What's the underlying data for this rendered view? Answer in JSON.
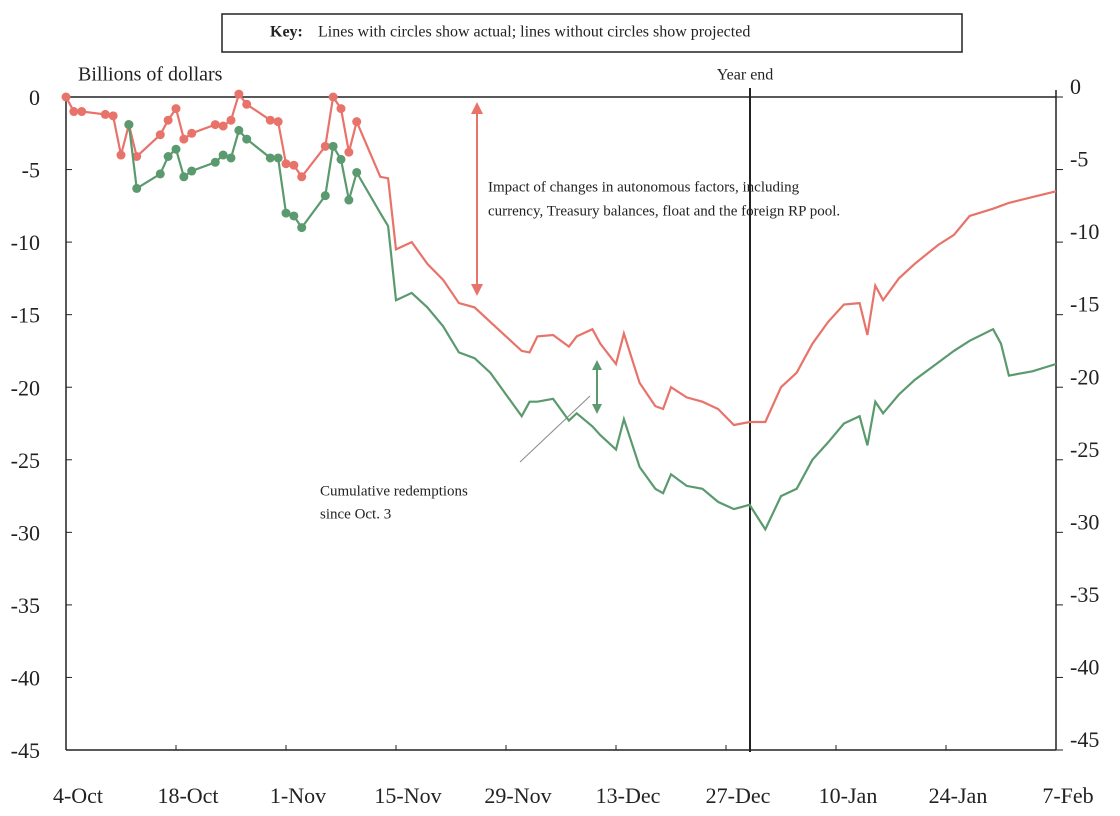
{
  "chart_data": {
    "type": "line",
    "key_label": "Key:",
    "key_text": "Lines with circles show actual;  lines without circles show projected",
    "ylabel": "Billions of dollars",
    "annotations": [
      {
        "text": [
          "Year end"
        ]
      },
      {
        "text": [
          "Impact of changes in autonomous factors, including",
          "currency, Treasury balances, float and the foreign RP pool."
        ],
        "color": "#e8736a"
      },
      {
        "text": [
          "Cumulative redemptions",
          "since Oct. 3"
        ],
        "color": "#666666"
      }
    ],
    "xlim": [
      "4-Oct",
      "7-Feb"
    ],
    "xticks": [
      "4-Oct",
      "18-Oct",
      "1-Nov",
      "15-Nov",
      "29-Nov",
      "13-Dec",
      "27-Dec",
      "10-Jan",
      "24-Jan",
      "7-Feb"
    ],
    "ylim": [
      -45,
      0
    ],
    "yticks": [
      0,
      -5,
      -10,
      -15,
      -20,
      -25,
      -30,
      -35,
      -40,
      -45
    ],
    "y2lim": [
      -45,
      0
    ],
    "y2ticks": [
      0,
      -5,
      -10,
      -15,
      -20,
      -25,
      -30,
      -35,
      -40,
      -45
    ],
    "series": [
      {
        "color": "#e8736a",
        "markers": true,
        "x": [
          "4-Oct",
          "5-Oct",
          "6-Oct",
          "9-Oct",
          "10-Oct",
          "11-Oct",
          "12-Oct",
          "13-Oct",
          "16-Oct",
          "17-Oct",
          "18-Oct",
          "19-Oct",
          "20-Oct",
          "23-Oct",
          "24-Oct",
          "25-Oct",
          "26-Oct",
          "27-Oct",
          "30-Oct",
          "31-Oct",
          "1-Nov",
          "2-Nov",
          "3-Nov",
          "6-Nov",
          "7-Nov",
          "8-Nov",
          "9-Nov",
          "10-Nov"
        ],
        "values": [
          0,
          -1.0,
          -1.0,
          -1.2,
          -1.3,
          -4.0,
          -1.9,
          -4.1,
          -2.6,
          -1.6,
          -0.8,
          -2.9,
          -2.5,
          -1.9,
          -2.0,
          -1.6,
          0.2,
          -0.5,
          -1.6,
          -1.7,
          -4.6,
          -4.7,
          -5.5,
          -3.4,
          0,
          -0.8,
          -3.8,
          -1.7
        ]
      },
      {
        "color": "#5a9a6e",
        "markers": true,
        "x": [
          "12-Oct",
          "13-Oct",
          "16-Oct",
          "17-Oct",
          "18-Oct",
          "19-Oct",
          "20-Oct",
          "23-Oct",
          "24-Oct",
          "25-Oct",
          "26-Oct",
          "27-Oct",
          "30-Oct",
          "31-Oct",
          "1-Nov",
          "2-Nov",
          "3-Nov",
          "6-Nov",
          "7-Nov",
          "8-Nov",
          "9-Nov",
          "10-Nov"
        ],
        "values": [
          -1.9,
          -6.3,
          -5.3,
          -4.1,
          -3.6,
          -5.5,
          -5.1,
          -4.5,
          -4.0,
          -4.2,
          -2.3,
          -2.9,
          -4.2,
          -4.2,
          -8.0,
          -8.2,
          -9.0,
          -6.8,
          -3.4,
          -4.3,
          -7.1,
          -5.2
        ]
      },
      {
        "color": "#e8736a",
        "markers": false,
        "x": [
          "10-Nov",
          "13-Nov",
          "14-Nov",
          "15-Nov",
          "17-Nov",
          "19-Nov",
          "21-Nov",
          "23-Nov",
          "25-Nov",
          "27-Nov",
          "29-Nov",
          "1-Dec",
          "2-Dec",
          "3-Dec",
          "5-Dec",
          "7-Dec",
          "8-Dec",
          "10-Dec",
          "11-Dec",
          "13-Dec",
          "14-Dec",
          "16-Dec",
          "18-Dec",
          "19-Dec",
          "20-Dec",
          "22-Dec",
          "24-Dec",
          "26-Dec",
          "28-Dec",
          "30-Dec",
          "1-Jan",
          "3-Jan",
          "5-Jan",
          "7-Jan",
          "9-Jan",
          "11-Jan",
          "13-Jan",
          "14-Jan",
          "15-Jan",
          "16-Jan",
          "18-Jan",
          "20-Jan",
          "23-Jan",
          "25-Jan",
          "27-Jan",
          "30-Jan",
          "31-Jan",
          "1-Feb",
          "4-Feb",
          "7-Feb"
        ],
        "values": [
          -1.7,
          -5.5,
          -5.6,
          -10.5,
          -10.0,
          -11.5,
          -12.6,
          -14.2,
          -14.5,
          -15.5,
          -16.5,
          -17.5,
          -17.6,
          -16.5,
          -16.4,
          -17.2,
          -16.5,
          -16.0,
          -17.0,
          -18.4,
          -16.3,
          -19.7,
          -21.3,
          -21.5,
          -20.0,
          -20.7,
          -21.0,
          -21.5,
          -22.6,
          -22.4,
          -22.4,
          -20.0,
          -19.0,
          -17.0,
          -15.5,
          -14.3,
          -14.2,
          -16.4,
          -13.0,
          -14.0,
          -12.5,
          -11.5,
          -10.2,
          -9.5,
          -8.2,
          -7.7,
          -7.5,
          -7.3,
          -6.9,
          -6.5
        ]
      },
      {
        "color": "#5a9a6e",
        "markers": false,
        "x": [
          "10-Nov",
          "13-Nov",
          "14-Nov",
          "15-Nov",
          "17-Nov",
          "19-Nov",
          "21-Nov",
          "23-Nov",
          "25-Nov",
          "27-Nov",
          "29-Nov",
          "1-Dec",
          "2-Dec",
          "3-Dec",
          "5-Dec",
          "7-Dec",
          "8-Dec",
          "10-Dec",
          "11-Dec",
          "13-Dec",
          "14-Dec",
          "16-Dec",
          "18-Dec",
          "19-Dec",
          "20-Dec",
          "22-Dec",
          "24-Dec",
          "26-Dec",
          "28-Dec",
          "30-Dec",
          "1-Jan",
          "3-Jan",
          "5-Jan",
          "7-Jan",
          "9-Jan",
          "11-Jan",
          "13-Jan",
          "14-Jan",
          "15-Jan",
          "16-Jan",
          "18-Jan",
          "20-Jan",
          "23-Jan",
          "25-Jan",
          "27-Jan",
          "30-Jan",
          "31-Jan",
          "1-Feb",
          "4-Feb",
          "7-Feb"
        ],
        "values": [
          -5.2,
          -8.0,
          -8.9,
          -14.0,
          -13.5,
          -14.5,
          -15.8,
          -17.6,
          -18.0,
          -19.0,
          -20.5,
          -22.0,
          -21.0,
          -21.0,
          -20.8,
          -22.3,
          -21.8,
          -22.7,
          -23.3,
          -24.3,
          -22.2,
          -25.5,
          -27.0,
          -27.3,
          -26.0,
          -26.8,
          -27.0,
          -27.9,
          -28.4,
          -28.1,
          -29.8,
          -27.5,
          -27.0,
          -25.0,
          -23.8,
          -22.5,
          -22.0,
          -24.0,
          -21.0,
          -21.8,
          -20.5,
          -19.5,
          -18.3,
          -17.5,
          -16.8,
          -16.0,
          -17.0,
          -19.2,
          -18.9,
          -18.4
        ]
      }
    ]
  }
}
